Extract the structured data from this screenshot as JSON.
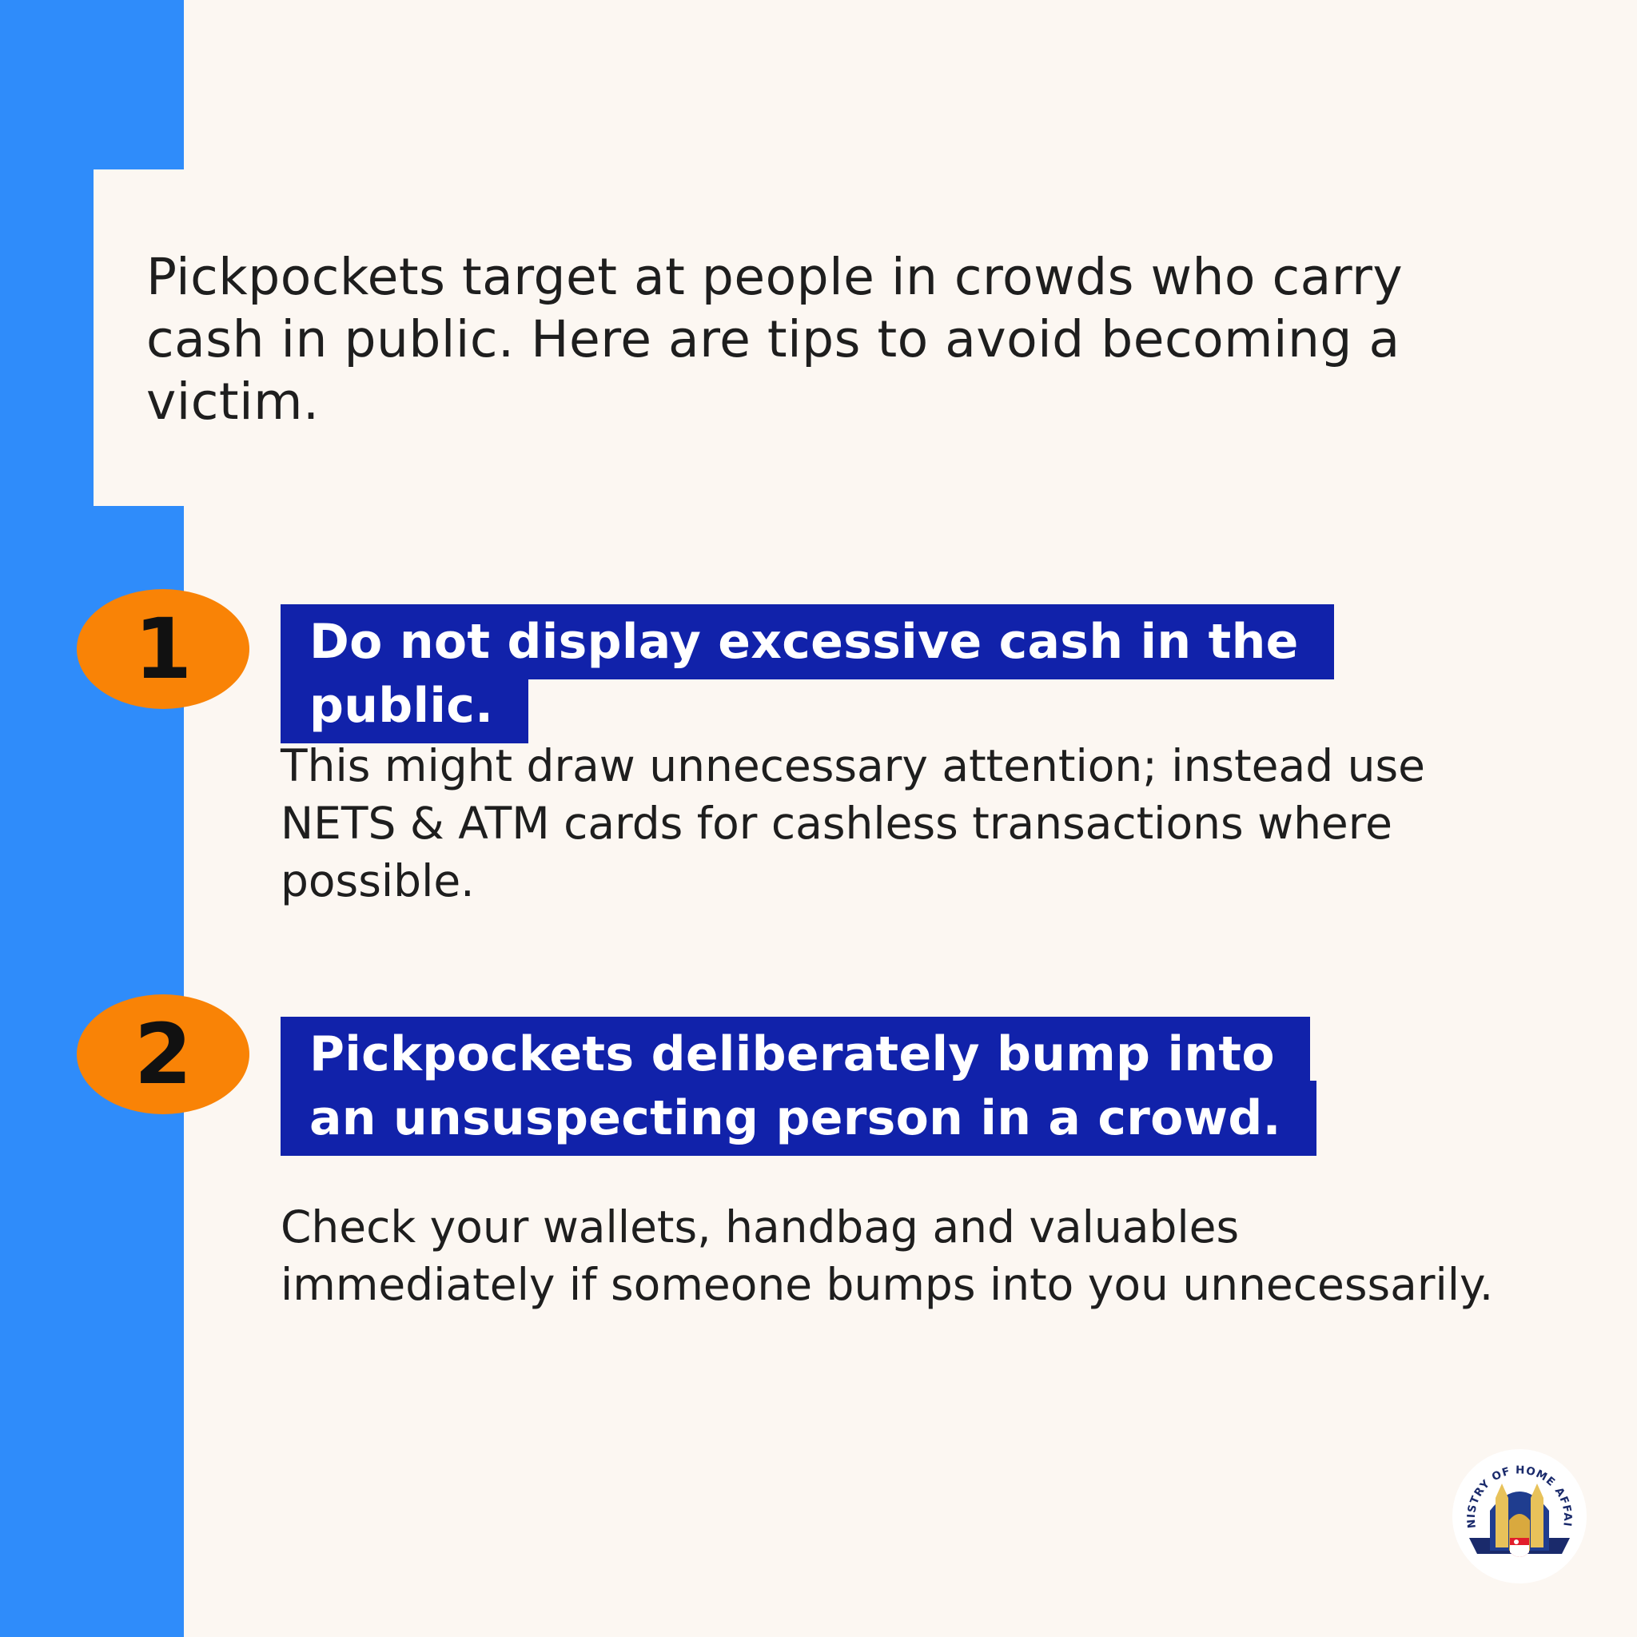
{
  "intro": {
    "text": "Pickpockets target at people in crowds who carry cash in public. Here are tips to avoid becoming a victim."
  },
  "tips": [
    {
      "number": "1",
      "heading": "Do not display excessive cash in the public.",
      "description": "This might draw unnecessary attention; instead use NETS & ATM cards for cashless transactions where possible."
    },
    {
      "number": "2",
      "heading": "Pickpockets deliberately bump into an unsuspecting person in a crowd.",
      "description": "Check your wallets, handbag and valuables immediately if someone bumps into you unnecessarily."
    }
  ],
  "logo": {
    "text": "MINISTRY OF HOME AFFAIRS",
    "icon": "ministry-crest"
  },
  "colors": {
    "stripe": "#2f8cfa",
    "background": "#fcf7f2",
    "heading_bg": "#1122aa",
    "badge": "#f98306"
  }
}
